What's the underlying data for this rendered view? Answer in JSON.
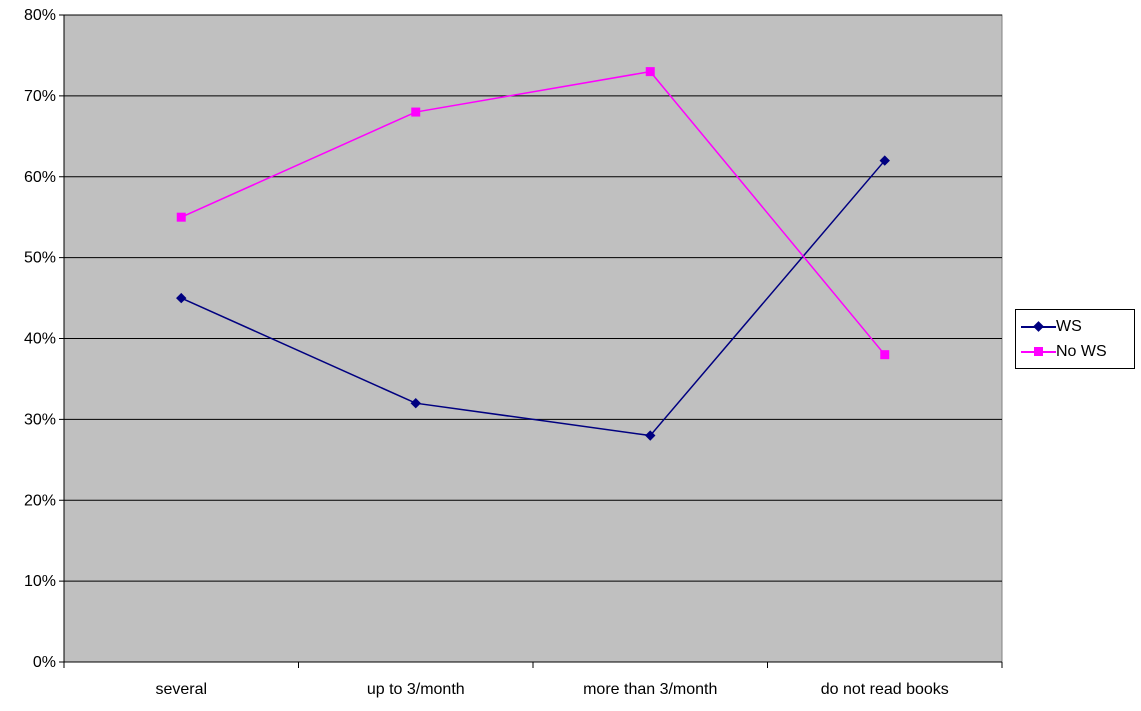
{
  "chart_data": {
    "type": "line",
    "categories": [
      "several",
      "up to 3/month",
      "more than 3/month",
      "do not read books"
    ],
    "y_ticks": [
      "0%",
      "10%",
      "20%",
      "30%",
      "40%",
      "50%",
      "60%",
      "70%",
      "80%"
    ],
    "ylim": [
      0,
      80
    ],
    "y_unit": "%",
    "grid": true,
    "legend_position": "right",
    "plot_background": "#c0c0c0",
    "series": [
      {
        "name": "WS",
        "values": [
          45,
          32,
          28,
          62
        ],
        "color": "#000080",
        "marker": "diamond"
      },
      {
        "name": "No WS",
        "values": [
          55,
          68,
          73,
          38
        ],
        "color": "#ff00ff",
        "marker": "square"
      }
    ]
  }
}
